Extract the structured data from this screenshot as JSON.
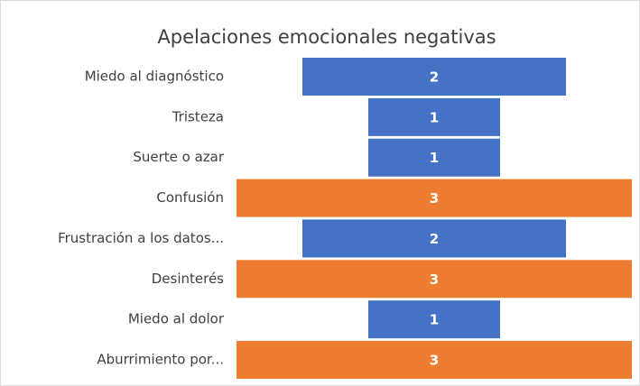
{
  "chart_data": {
    "type": "funnel",
    "title": "Apelaciones emocionales negativas",
    "categories": [
      "Miedo al diagnóstico",
      "Tristeza",
      "Suerte o azar",
      "Confusión",
      "Frustración a los datos...",
      "Desinterés",
      "Miedo al dolor",
      "Aburrimiento por..."
    ],
    "values": [
      2,
      1,
      1,
      3,
      2,
      3,
      1,
      3
    ],
    "colors": [
      "#4472c4",
      "#4472c4",
      "#4472c4",
      "#ed7d31",
      "#4472c4",
      "#ed7d31",
      "#4472c4",
      "#ed7d31"
    ]
  }
}
